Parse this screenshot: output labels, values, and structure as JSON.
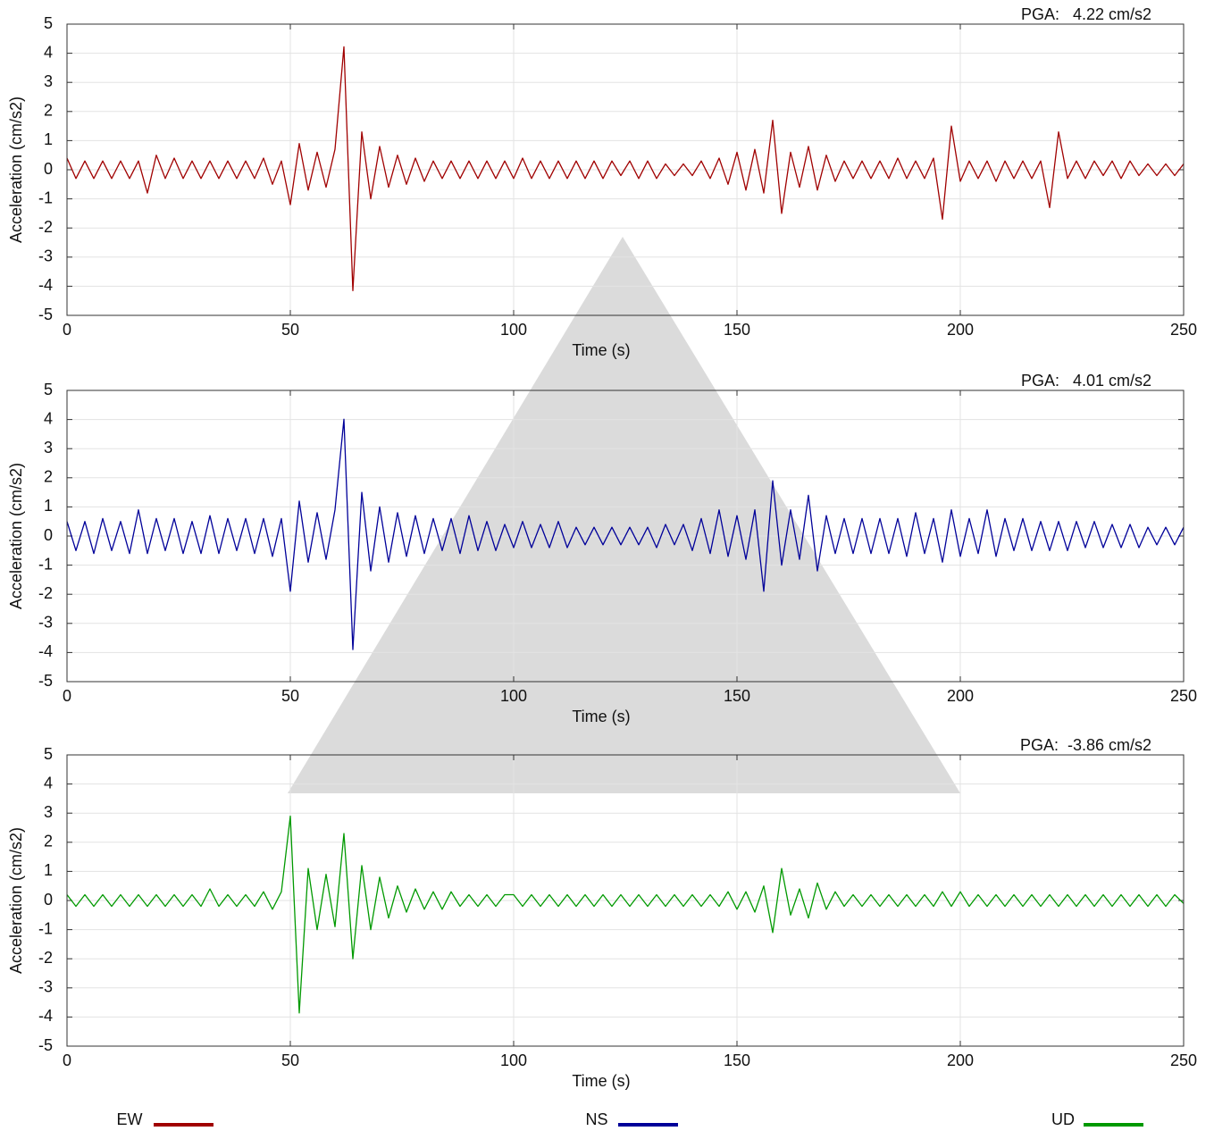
{
  "chart_data": [
    {
      "type": "line",
      "annotation": "PGA:   4.22 cm/s2",
      "xlabel": "Time (s)",
      "ylabel": "Acceleration (cm/s2)",
      "x": [
        0,
        2,
        4,
        6,
        8,
        10,
        12,
        14,
        16,
        18,
        20,
        22,
        24,
        26,
        28,
        30,
        32,
        34,
        36,
        38,
        40,
        42,
        44,
        46,
        48,
        50,
        52,
        54,
        56,
        58,
        60,
        62,
        64,
        66,
        68,
        70,
        72,
        74,
        76,
        78,
        80,
        82,
        84,
        86,
        88,
        90,
        92,
        94,
        96,
        98,
        100,
        102,
        104,
        106,
        108,
        110,
        112,
        114,
        116,
        118,
        120,
        122,
        124,
        126,
        128,
        130,
        132,
        134,
        136,
        138,
        140,
        142,
        144,
        146,
        148,
        150,
        152,
        154,
        156,
        158,
        160,
        162,
        164,
        166,
        168,
        170,
        172,
        174,
        176,
        178,
        180,
        182,
        184,
        186,
        188,
        190,
        192,
        194,
        196,
        198,
        200,
        202,
        204,
        206,
        208,
        210,
        212,
        214,
        216,
        218,
        220,
        222,
        224,
        226,
        228,
        230,
        232,
        234,
        236,
        238,
        240,
        242,
        244,
        246,
        248,
        250
      ],
      "series": [
        {
          "name": "EW",
          "color": "#a00000",
          "values": [
            0.4,
            -0.3,
            0.3,
            -0.3,
            0.3,
            -0.3,
            0.3,
            -0.3,
            0.3,
            -0.8,
            0.5,
            -0.3,
            0.4,
            -0.3,
            0.3,
            -0.3,
            0.3,
            -0.3,
            0.3,
            -0.3,
            0.3,
            -0.3,
            0.4,
            -0.5,
            0.3,
            -1.2,
            0.9,
            -0.7,
            0.6,
            -0.6,
            0.7,
            4.22,
            -4.15,
            1.3,
            -1.0,
            0.8,
            -0.6,
            0.5,
            -0.5,
            0.4,
            -0.4,
            0.3,
            -0.3,
            0.3,
            -0.3,
            0.3,
            -0.3,
            0.3,
            -0.3,
            0.3,
            -0.3,
            0.4,
            -0.3,
            0.3,
            -0.3,
            0.3,
            -0.3,
            0.3,
            -0.3,
            0.3,
            -0.3,
            0.3,
            -0.2,
            0.3,
            -0.3,
            0.3,
            -0.3,
            0.2,
            -0.2,
            0.2,
            -0.2,
            0.3,
            -0.3,
            0.4,
            -0.5,
            0.6,
            -0.7,
            0.7,
            -0.8,
            1.7,
            -1.5,
            0.6,
            -0.6,
            0.8,
            -0.7,
            0.5,
            -0.4,
            0.3,
            -0.3,
            0.3,
            -0.3,
            0.3,
            -0.3,
            0.4,
            -0.3,
            0.3,
            -0.3,
            0.4,
            -1.7,
            1.5,
            -0.4,
            0.3,
            -0.3,
            0.3,
            -0.4,
            0.3,
            -0.3,
            0.3,
            -0.3,
            0.3,
            -1.3,
            1.3,
            -0.3,
            0.3,
            -0.3,
            0.3,
            -0.2,
            0.3,
            -0.3,
            0.3,
            -0.2,
            0.2,
            -0.2,
            0.2,
            -0.2,
            0.2
          ]
        }
      ],
      "xlim": [
        0,
        250
      ],
      "ylim": [
        -5,
        5
      ],
      "xticks": [
        0,
        50,
        100,
        150,
        200,
        250
      ],
      "yticks": [
        -5,
        -4,
        -3,
        -2,
        -1,
        0,
        1,
        2,
        3,
        4,
        5
      ],
      "grid": true
    },
    {
      "type": "line",
      "annotation": "PGA:   4.01 cm/s2",
      "xlabel": "Time (s)",
      "ylabel": "Acceleration (cm/s2)",
      "x": [
        0,
        2,
        4,
        6,
        8,
        10,
        12,
        14,
        16,
        18,
        20,
        22,
        24,
        26,
        28,
        30,
        32,
        34,
        36,
        38,
        40,
        42,
        44,
        46,
        48,
        50,
        52,
        54,
        56,
        58,
        60,
        62,
        64,
        66,
        68,
        70,
        72,
        74,
        76,
        78,
        80,
        82,
        84,
        86,
        88,
        90,
        92,
        94,
        96,
        98,
        100,
        102,
        104,
        106,
        108,
        110,
        112,
        114,
        116,
        118,
        120,
        122,
        124,
        126,
        128,
        130,
        132,
        134,
        136,
        138,
        140,
        142,
        144,
        146,
        148,
        150,
        152,
        154,
        156,
        158,
        160,
        162,
        164,
        166,
        168,
        170,
        172,
        174,
        176,
        178,
        180,
        182,
        184,
        186,
        188,
        190,
        192,
        194,
        196,
        198,
        200,
        202,
        204,
        206,
        208,
        210,
        212,
        214,
        216,
        218,
        220,
        222,
        224,
        226,
        228,
        230,
        232,
        234,
        236,
        238,
        240,
        242,
        244,
        246,
        248,
        250
      ],
      "series": [
        {
          "name": "NS",
          "color": "#000099",
          "values": [
            0.5,
            -0.5,
            0.5,
            -0.6,
            0.6,
            -0.5,
            0.5,
            -0.6,
            0.9,
            -0.6,
            0.6,
            -0.5,
            0.6,
            -0.6,
            0.5,
            -0.6,
            0.7,
            -0.6,
            0.6,
            -0.5,
            0.6,
            -0.6,
            0.6,
            -0.7,
            0.6,
            -1.9,
            1.2,
            -0.9,
            0.8,
            -0.8,
            0.9,
            4.01,
            -3.9,
            1.5,
            -1.2,
            1.0,
            -0.9,
            0.8,
            -0.7,
            0.7,
            -0.6,
            0.6,
            -0.5,
            0.6,
            -0.6,
            0.7,
            -0.5,
            0.5,
            -0.5,
            0.4,
            -0.4,
            0.5,
            -0.4,
            0.4,
            -0.4,
            0.5,
            -0.4,
            0.3,
            -0.3,
            0.3,
            -0.3,
            0.3,
            -0.3,
            0.3,
            -0.3,
            0.3,
            -0.4,
            0.4,
            -0.3,
            0.4,
            -0.5,
            0.6,
            -0.6,
            0.9,
            -0.7,
            0.7,
            -0.8,
            0.9,
            -1.9,
            1.9,
            -1.0,
            0.9,
            -0.8,
            1.4,
            -1.2,
            0.7,
            -0.6,
            0.6,
            -0.6,
            0.6,
            -0.6,
            0.6,
            -0.6,
            0.6,
            -0.7,
            0.8,
            -0.6,
            0.6,
            -0.9,
            0.9,
            -0.7,
            0.6,
            -0.6,
            0.9,
            -0.7,
            0.6,
            -0.5,
            0.6,
            -0.5,
            0.5,
            -0.5,
            0.5,
            -0.5,
            0.5,
            -0.4,
            0.5,
            -0.4,
            0.4,
            -0.4,
            0.4,
            -0.4,
            0.3,
            -0.3,
            0.3,
            -0.3,
            0.3
          ]
        }
      ],
      "xlim": [
        0,
        250
      ],
      "ylim": [
        -5,
        5
      ],
      "xticks": [
        0,
        50,
        100,
        150,
        200,
        250
      ],
      "yticks": [
        -5,
        -4,
        -3,
        -2,
        -1,
        0,
        1,
        2,
        3,
        4,
        5
      ],
      "grid": true
    },
    {
      "type": "line",
      "annotation": "PGA:  -3.86 cm/s2",
      "xlabel": "Time (s)",
      "ylabel": "Acceleration (cm/s2)",
      "x": [
        0,
        2,
        4,
        6,
        8,
        10,
        12,
        14,
        16,
        18,
        20,
        22,
        24,
        26,
        28,
        30,
        32,
        34,
        36,
        38,
        40,
        42,
        44,
        46,
        48,
        50,
        52,
        54,
        56,
        58,
        60,
        62,
        64,
        66,
        68,
        70,
        72,
        74,
        76,
        78,
        80,
        82,
        84,
        86,
        88,
        90,
        92,
        94,
        96,
        98,
        100,
        102,
        104,
        106,
        108,
        110,
        112,
        114,
        116,
        118,
        120,
        122,
        124,
        126,
        128,
        130,
        132,
        134,
        136,
        138,
        140,
        142,
        144,
        146,
        148,
        150,
        152,
        154,
        156,
        158,
        160,
        162,
        164,
        166,
        168,
        170,
        172,
        174,
        176,
        178,
        180,
        182,
        184,
        186,
        188,
        190,
        192,
        194,
        196,
        198,
        200,
        202,
        204,
        206,
        208,
        210,
        212,
        214,
        216,
        218,
        220,
        222,
        224,
        226,
        228,
        230,
        232,
        234,
        236,
        238,
        240,
        242,
        244,
        246,
        248,
        250
      ],
      "series": [
        {
          "name": "UD",
          "color": "#009900",
          "values": [
            0.2,
            -0.2,
            0.2,
            -0.2,
            0.2,
            -0.2,
            0.2,
            -0.2,
            0.2,
            -0.2,
            0.2,
            -0.2,
            0.2,
            -0.2,
            0.2,
            -0.2,
            0.4,
            -0.2,
            0.2,
            -0.2,
            0.2,
            -0.2,
            0.3,
            -0.3,
            0.3,
            2.9,
            -3.86,
            1.1,
            -1.0,
            0.9,
            -0.9,
            2.3,
            -2.0,
            1.2,
            -1.0,
            0.8,
            -0.6,
            0.5,
            -0.4,
            0.4,
            -0.3,
            0.3,
            -0.3,
            0.3,
            -0.2,
            0.2,
            -0.2,
            0.2,
            -0.2,
            0.2,
            0.2,
            -0.2,
            0.2,
            -0.2,
            0.2,
            -0.2,
            0.2,
            -0.2,
            0.2,
            -0.2,
            0.2,
            -0.2,
            0.2,
            -0.2,
            0.2,
            -0.2,
            0.2,
            -0.2,
            0.2,
            -0.2,
            0.2,
            -0.2,
            0.2,
            -0.2,
            0.3,
            -0.3,
            0.3,
            -0.4,
            0.5,
            -1.1,
            1.1,
            -0.5,
            0.4,
            -0.6,
            0.6,
            -0.3,
            0.3,
            -0.2,
            0.2,
            -0.2,
            0.2,
            -0.2,
            0.2,
            -0.2,
            0.2,
            -0.2,
            0.2,
            -0.2,
            0.3,
            -0.2,
            0.3,
            -0.2,
            0.2,
            -0.2,
            0.2,
            -0.2,
            0.2,
            -0.2,
            0.2,
            -0.2,
            0.2,
            -0.2,
            0.2,
            -0.2,
            0.2,
            -0.2,
            0.2,
            -0.2,
            0.2,
            -0.2,
            0.2,
            -0.2,
            0.2,
            -0.2,
            0.2,
            -0.1
          ]
        }
      ],
      "xlim": [
        0,
        250
      ],
      "ylim": [
        -5,
        5
      ],
      "xticks": [
        0,
        50,
        100,
        150,
        200,
        250
      ],
      "yticks": [
        -5,
        -4,
        -3,
        -2,
        -1,
        0,
        1,
        2,
        3,
        4,
        5
      ],
      "grid": true
    }
  ]
}
